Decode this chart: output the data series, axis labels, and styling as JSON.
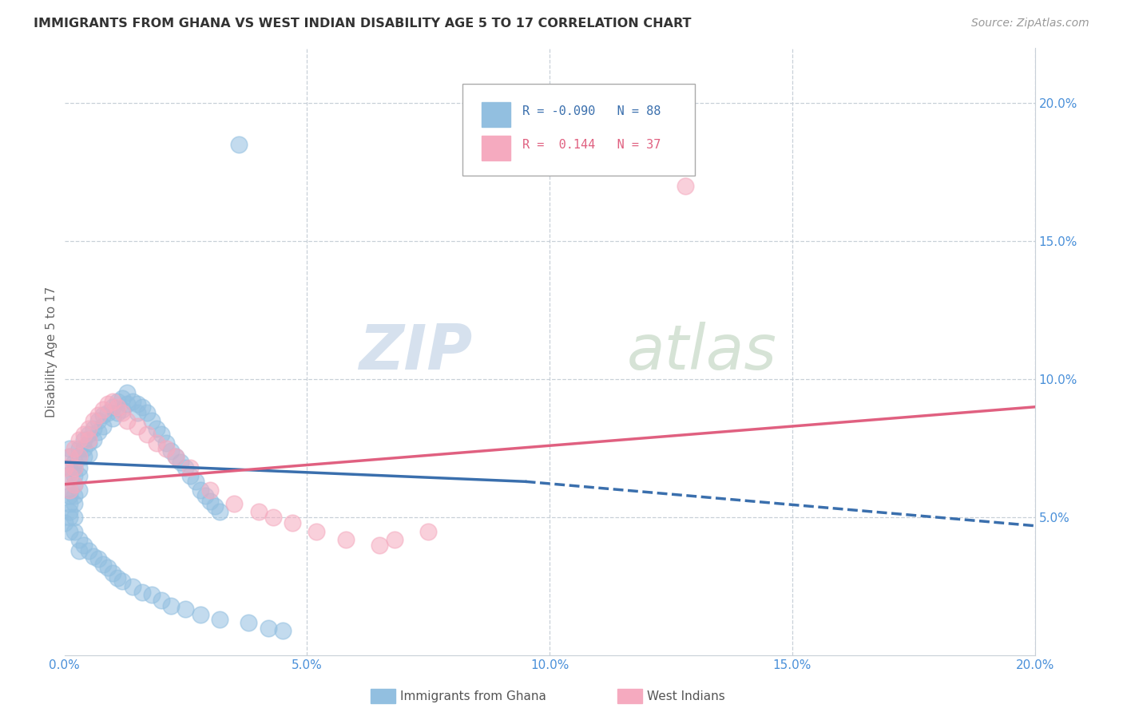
{
  "title": "IMMIGRANTS FROM GHANA VS WEST INDIAN DISABILITY AGE 5 TO 17 CORRELATION CHART",
  "source": "Source: ZipAtlas.com",
  "ylabel_label": "Disability Age 5 to 17",
  "xlim": [
    0.0,
    0.2
  ],
  "ylim": [
    0.0,
    0.22
  ],
  "xtick_vals": [
    0.0,
    0.05,
    0.1,
    0.15,
    0.2
  ],
  "xtick_labels": [
    "0.0%",
    "5.0%",
    "10.0%",
    "15.0%",
    "20.0%"
  ],
  "ytick_vals": [
    0.05,
    0.1,
    0.15,
    0.2
  ],
  "ytick_labels": [
    "5.0%",
    "10.0%",
    "15.0%",
    "20.0%"
  ],
  "color_ghana": "#92bfe0",
  "color_westindian": "#f5aabf",
  "color_ghana_line": "#3a6fad",
  "color_westindian_line": "#e06080",
  "watermark_color": "#d0dce8",
  "watermark_color2": "#c8d8c8",
  "ghana_r": -0.09,
  "ghana_n": 88,
  "wi_r": 0.144,
  "wi_n": 37,
  "ghana_x": [
    0.0,
    0.001,
    0.001,
    0.001,
    0.001,
    0.001,
    0.001,
    0.001,
    0.002,
    0.002,
    0.002,
    0.002,
    0.002,
    0.002,
    0.003,
    0.003,
    0.003,
    0.003,
    0.003,
    0.004,
    0.004,
    0.004,
    0.005,
    0.005,
    0.005,
    0.006,
    0.006,
    0.007,
    0.007,
    0.008,
    0.008,
    0.009,
    0.01,
    0.01,
    0.011,
    0.011,
    0.012,
    0.012,
    0.013,
    0.013,
    0.014,
    0.015,
    0.015,
    0.016,
    0.017,
    0.018,
    0.019,
    0.02,
    0.021,
    0.022,
    0.023,
    0.024,
    0.025,
    0.026,
    0.027,
    0.028,
    0.029,
    0.03,
    0.031,
    0.032,
    0.0,
    0.001,
    0.001,
    0.002,
    0.002,
    0.003,
    0.003,
    0.004,
    0.005,
    0.006,
    0.007,
    0.008,
    0.009,
    0.01,
    0.011,
    0.012,
    0.014,
    0.016,
    0.018,
    0.02,
    0.022,
    0.025,
    0.028,
    0.032,
    0.038,
    0.042,
    0.045,
    0.036
  ],
  "ghana_y": [
    0.065,
    0.068,
    0.072,
    0.075,
    0.06,
    0.058,
    0.055,
    0.052,
    0.07,
    0.068,
    0.065,
    0.062,
    0.058,
    0.055,
    0.075,
    0.072,
    0.068,
    0.065,
    0.06,
    0.078,
    0.075,
    0.072,
    0.08,
    0.077,
    0.073,
    0.082,
    0.078,
    0.085,
    0.081,
    0.087,
    0.083,
    0.088,
    0.09,
    0.086,
    0.092,
    0.088,
    0.093,
    0.089,
    0.095,
    0.091,
    0.092,
    0.091,
    0.088,
    0.09,
    0.088,
    0.085,
    0.082,
    0.08,
    0.077,
    0.074,
    0.072,
    0.07,
    0.068,
    0.065,
    0.063,
    0.06,
    0.058,
    0.056,
    0.054,
    0.052,
    0.048,
    0.05,
    0.045,
    0.05,
    0.045,
    0.042,
    0.038,
    0.04,
    0.038,
    0.036,
    0.035,
    0.033,
    0.032,
    0.03,
    0.028,
    0.027,
    0.025,
    0.023,
    0.022,
    0.02,
    0.018,
    0.017,
    0.015,
    0.013,
    0.012,
    0.01,
    0.009,
    0.185
  ],
  "wi_x": [
    0.0,
    0.001,
    0.001,
    0.001,
    0.002,
    0.002,
    0.002,
    0.003,
    0.003,
    0.004,
    0.005,
    0.005,
    0.006,
    0.007,
    0.008,
    0.009,
    0.01,
    0.011,
    0.012,
    0.013,
    0.015,
    0.017,
    0.019,
    0.021,
    0.023,
    0.026,
    0.03,
    0.035,
    0.04,
    0.043,
    0.047,
    0.052,
    0.058,
    0.065,
    0.068,
    0.075,
    0.128
  ],
  "wi_y": [
    0.068,
    0.072,
    0.065,
    0.06,
    0.075,
    0.068,
    0.062,
    0.078,
    0.072,
    0.08,
    0.082,
    0.078,
    0.085,
    0.087,
    0.089,
    0.091,
    0.092,
    0.09,
    0.088,
    0.085,
    0.083,
    0.08,
    0.077,
    0.075,
    0.072,
    0.068,
    0.06,
    0.055,
    0.052,
    0.05,
    0.048,
    0.045,
    0.042,
    0.04,
    0.042,
    0.045,
    0.17
  ],
  "ghana_line_x0": 0.0,
  "ghana_line_y0": 0.07,
  "ghana_line_x1": 0.095,
  "ghana_line_y1": 0.063,
  "ghana_line_xdash1": 0.095,
  "ghana_line_ydash1": 0.063,
  "ghana_line_xdash2": 0.2,
  "ghana_line_ydash2": 0.047,
  "wi_line_x0": 0.0,
  "wi_line_y0": 0.062,
  "wi_line_x1": 0.2,
  "wi_line_y1": 0.09
}
